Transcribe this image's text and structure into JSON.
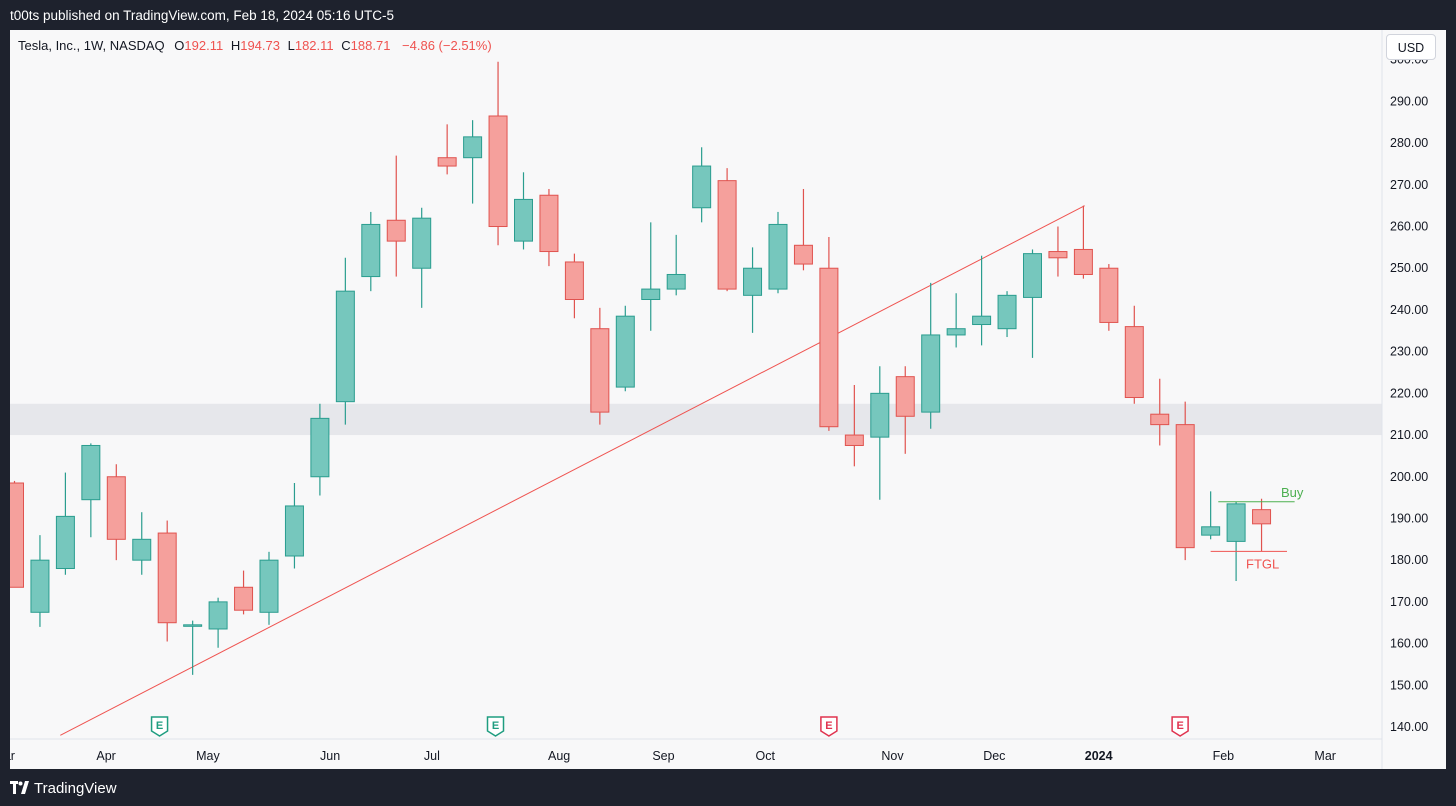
{
  "header": {
    "publisher_line": "t00ts published on TradingView.com, Feb 18, 2024 05:16 UTC-5"
  },
  "legend": {
    "symbol": "Tesla, Inc., 1W, NASDAQ",
    "o_label": "O",
    "o_value": "192.11",
    "h_label": "H",
    "h_value": "194.73",
    "l_label": "L",
    "l_value": "182.11",
    "c_label": "C",
    "c_value": "188.71",
    "change": "−4.86 (−2.51%)"
  },
  "currency_button": "USD",
  "footer": {
    "brand": "TradingView"
  },
  "colors": {
    "up": "#76c7bd",
    "up_border": "#2a9d8f",
    "down": "#f5a09c",
    "down_border": "#e0534f",
    "trendline": "#ef5350",
    "zone": "#e6e7eb",
    "buy": "#4caf50",
    "ftgl": "#ef5350"
  },
  "chart_data": {
    "type": "candlestick",
    "title": "Tesla, Inc., 1W, NASDAQ",
    "ylim": [
      137,
      307
    ],
    "y_ticks": [
      140,
      150,
      160,
      170,
      180,
      190,
      200,
      210,
      220,
      230,
      240,
      250,
      260,
      270,
      280,
      290,
      300
    ],
    "y_tick_labels": [
      "140.00",
      "150.00",
      "160.00",
      "170.00",
      "180.00",
      "190.00",
      "200.00",
      "210.00",
      "220.00",
      "230.00",
      "240.00",
      "250.00",
      "260.00",
      "270.00",
      "280.00",
      "290.00",
      "300.00"
    ],
    "x_labels": [
      {
        "label": "ar",
        "week": -0.2
      },
      {
        "label": "Apr",
        "week": 3.6
      },
      {
        "label": "May",
        "week": 7.6
      },
      {
        "label": "Jun",
        "week": 12.4
      },
      {
        "label": "Jul",
        "week": 16.4
      },
      {
        "label": "Aug",
        "week": 21.4
      },
      {
        "label": "Sep",
        "week": 25.5
      },
      {
        "label": "Oct",
        "week": 29.5
      },
      {
        "label": "Nov",
        "week": 34.5
      },
      {
        "label": "Dec",
        "week": 38.5
      },
      {
        "label": "2024",
        "week": 42.6,
        "bold": true
      },
      {
        "label": "Feb",
        "week": 47.5
      },
      {
        "label": "Mar",
        "week": 51.5
      }
    ],
    "candles": [
      {
        "o": 198.5,
        "h": 199,
        "l": 173.5,
        "c": 173.5
      },
      {
        "o": 167.5,
        "h": 186,
        "l": 164,
        "c": 180
      },
      {
        "o": 178,
        "h": 201,
        "l": 176.5,
        "c": 190.5
      },
      {
        "o": 194.5,
        "h": 208,
        "l": 185.5,
        "c": 207.5
      },
      {
        "o": 200,
        "h": 203,
        "l": 180,
        "c": 185
      },
      {
        "o": 180,
        "h": 191.5,
        "l": 176.5,
        "c": 185
      },
      {
        "o": 186.5,
        "h": 189.5,
        "l": 160.5,
        "c": 165
      },
      {
        "o": 164.5,
        "h": 165.5,
        "l": 152.5,
        "c": 164.5
      },
      {
        "o": 163.5,
        "h": 171,
        "l": 159,
        "c": 170
      },
      {
        "o": 173.5,
        "h": 177.5,
        "l": 167,
        "c": 168
      },
      {
        "o": 167.5,
        "h": 182,
        "l": 164.5,
        "c": 180
      },
      {
        "o": 181,
        "h": 198.5,
        "l": 178,
        "c": 193
      },
      {
        "o": 200,
        "h": 217.5,
        "l": 195.5,
        "c": 214
      },
      {
        "o": 218,
        "h": 252.5,
        "l": 212.5,
        "c": 244.5
      },
      {
        "o": 248,
        "h": 263.5,
        "l": 244.5,
        "c": 260.5
      },
      {
        "o": 261.5,
        "h": 277,
        "l": 248,
        "c": 256.5
      },
      {
        "o": 250,
        "h": 264.5,
        "l": 240.5,
        "c": 262
      },
      {
        "o": 276.5,
        "h": 284.5,
        "l": 272.5,
        "c": 274.5
      },
      {
        "o": 276.5,
        "h": 285.5,
        "l": 265.5,
        "c": 281.5
      },
      {
        "o": 286.5,
        "h": 299.5,
        "l": 255.5,
        "c": 260
      },
      {
        "o": 256.5,
        "h": 273,
        "l": 254.5,
        "c": 266.5
      },
      {
        "o": 267.5,
        "h": 269,
        "l": 250.5,
        "c": 254
      },
      {
        "o": 251.5,
        "h": 253.5,
        "l": 238,
        "c": 242.5
      },
      {
        "o": 235.5,
        "h": 240.5,
        "l": 212.5,
        "c": 215.5
      },
      {
        "o": 221.5,
        "h": 241,
        "l": 220.5,
        "c": 238.5
      },
      {
        "o": 242.5,
        "h": 261,
        "l": 235,
        "c": 245
      },
      {
        "o": 245,
        "h": 258,
        "l": 243.5,
        "c": 248.5
      },
      {
        "o": 264.5,
        "h": 279,
        "l": 261,
        "c": 274.5
      },
      {
        "o": 271,
        "h": 274,
        "l": 244.5,
        "c": 245
      },
      {
        "o": 243.5,
        "h": 255,
        "l": 234.5,
        "c": 250
      },
      {
        "o": 245,
        "h": 263.5,
        "l": 244,
        "c": 260.5
      },
      {
        "o": 255.5,
        "h": 269,
        "l": 249.5,
        "c": 251
      },
      {
        "o": 250,
        "h": 257.5,
        "l": 211,
        "c": 212
      },
      {
        "o": 210,
        "h": 222,
        "l": 202.5,
        "c": 207.5
      },
      {
        "o": 209.5,
        "h": 226.5,
        "l": 194.5,
        "c": 220
      },
      {
        "o": 224,
        "h": 226.5,
        "l": 205.5,
        "c": 214.5
      },
      {
        "o": 215.5,
        "h": 246.5,
        "l": 211.5,
        "c": 234
      },
      {
        "o": 234,
        "h": 244,
        "l": 231,
        "c": 235.5
      },
      {
        "o": 236.5,
        "h": 253,
        "l": 231.5,
        "c": 238.5
      },
      {
        "o": 235.5,
        "h": 244.5,
        "l": 233.5,
        "c": 243.5
      },
      {
        "o": 243,
        "h": 254.5,
        "l": 228.5,
        "c": 253.5
      },
      {
        "o": 254,
        "h": 260,
        "l": 248,
        "c": 252.5
      },
      {
        "o": 254.5,
        "h": 265,
        "l": 247.5,
        "c": 248.5
      },
      {
        "o": 250,
        "h": 251,
        "l": 235,
        "c": 237
      },
      {
        "o": 236,
        "h": 241,
        "l": 217.5,
        "c": 219
      },
      {
        "o": 215,
        "h": 223.5,
        "l": 207.5,
        "c": 212.5
      },
      {
        "o": 212.5,
        "h": 218,
        "l": 180,
        "c": 183
      },
      {
        "o": 186,
        "h": 196.5,
        "l": 185,
        "c": 188
      },
      {
        "o": 184.5,
        "h": 194,
        "l": 175,
        "c": 193.5
      },
      {
        "o": 192.11,
        "h": 194.73,
        "l": 182.11,
        "c": 188.71
      }
    ],
    "trendline": {
      "from": {
        "week": 1.8,
        "price": 138
      },
      "to": {
        "week": 42.05,
        "price": 265
      }
    },
    "zone": {
      "from": 210,
      "to": 217.5
    },
    "annotations": [
      {
        "text": "Buy",
        "price": 194,
        "from_week": 47.3,
        "to_week": 50.3
      },
      {
        "text": "FTGL",
        "price": 182.11,
        "from_week": 47.0,
        "to_week": 50.0
      }
    ],
    "earnings_markers": [
      {
        "label": "E",
        "week": 5.7,
        "kind": "up"
      },
      {
        "label": "E",
        "week": 18.9,
        "kind": "up"
      },
      {
        "label": "E",
        "week": 32.0,
        "kind": "down"
      },
      {
        "label": "E",
        "week": 45.8,
        "kind": "down"
      }
    ]
  }
}
